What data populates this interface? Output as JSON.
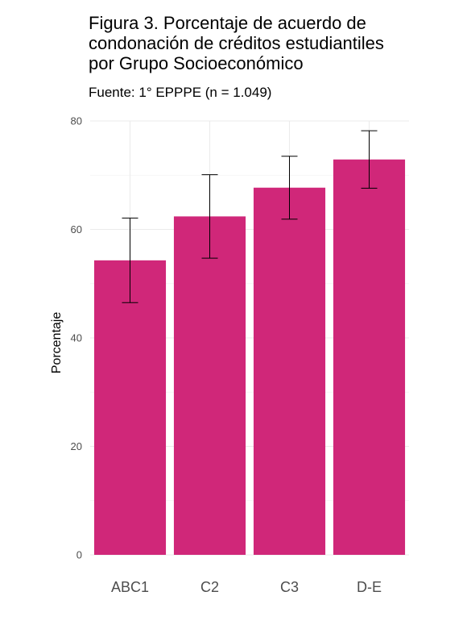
{
  "chart_data": {
    "type": "bar",
    "title_lines": [
      "Figura 3. Porcentaje de acuerdo de",
      "condonación de créditos estudiantiles",
      "por Grupo Socioeconómico"
    ],
    "subtitle": "Fuente: 1° EPPPE (n = 1.049)",
    "xlabel": "",
    "ylabel": "Porcentaje",
    "categories": [
      "ABC1",
      "C2",
      "C3",
      "D-E"
    ],
    "values": [
      54.3,
      62.4,
      67.7,
      72.9
    ],
    "error_low": [
      46.5,
      54.7,
      61.9,
      67.6
    ],
    "error_high": [
      62.1,
      70.1,
      73.5,
      78.2
    ],
    "ylim": [
      0,
      80
    ],
    "yticks": [
      0,
      20,
      40,
      60,
      80
    ],
    "ytick_labels": [
      "0",
      "20",
      "40",
      "60",
      "80"
    ],
    "bar_color": "#d02779",
    "grid": true,
    "legend": "none"
  }
}
